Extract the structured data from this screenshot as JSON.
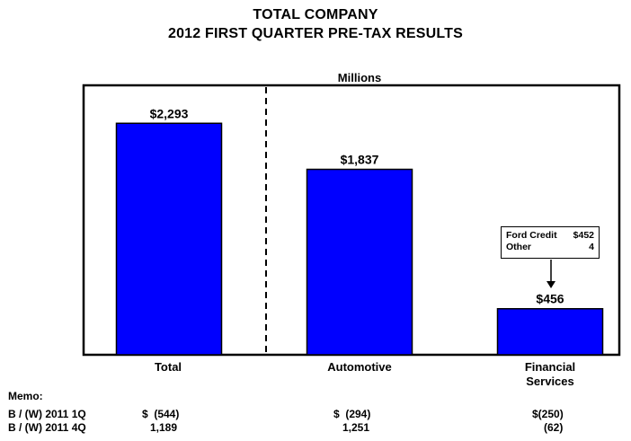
{
  "title_line1": "TOTAL COMPANY",
  "title_line2": "2012 FIRST QUARTER PRE-TAX RESULTS",
  "units_label": "Millions",
  "chart_data": {
    "type": "bar",
    "categories": [
      "Total",
      "Automotive",
      "Financial Services"
    ],
    "values": [
      2293,
      1837,
      456
    ],
    "data_labels": [
      "$2,293",
      "$1,837",
      "$456"
    ],
    "ylim": [
      0,
      2500
    ],
    "bar_color": "#0000FF",
    "grid": false,
    "title": "TOTAL COMPANY 2012 FIRST QUARTER PRE-TAX RESULTS",
    "ylabel": "Millions"
  },
  "category_labels": {
    "total": "Total",
    "automotive": "Automotive",
    "financial_line1": "Financial",
    "financial_line2": "Services"
  },
  "callout": {
    "row1_label": "Ford Credit",
    "row1_value": "$452",
    "row2_label": "Other",
    "row2_value": "4"
  },
  "memo": {
    "title": "Memo:",
    "rows": [
      {
        "label": "B / (W) 2011 1Q",
        "total": "$  (544)",
        "automotive": "$  (294)",
        "financial": "$(250)"
      },
      {
        "label": "B / (W) 2011 4Q",
        "total": "1,189",
        "automotive": "1,251",
        "financial": "(62)"
      }
    ]
  }
}
